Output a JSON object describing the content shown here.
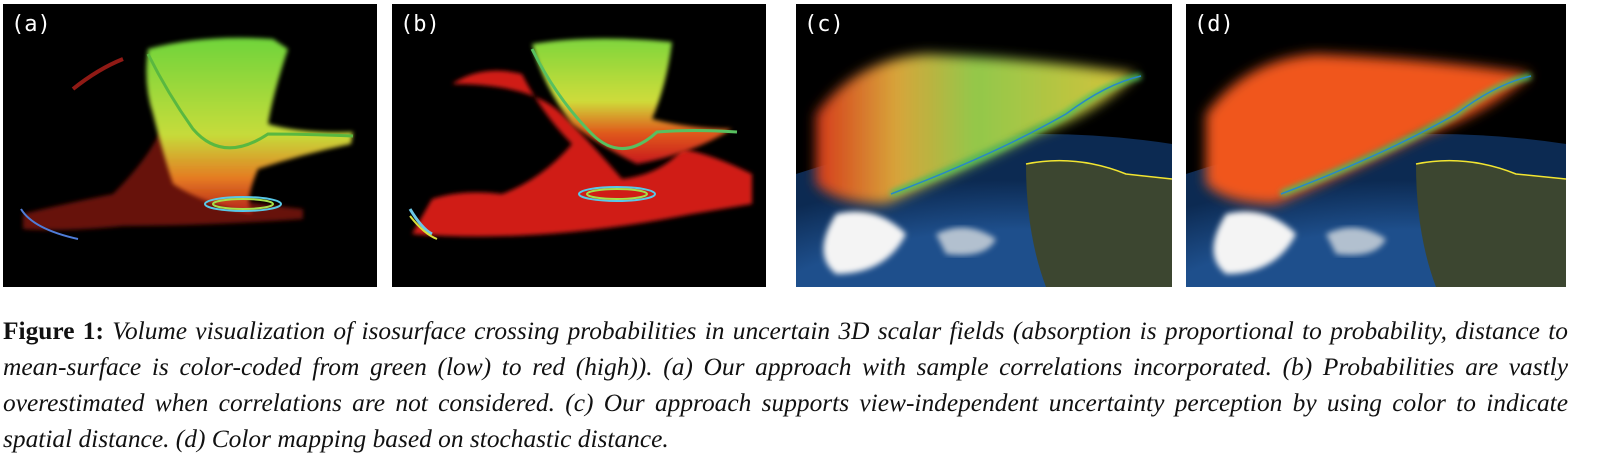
{
  "figure": {
    "panels": [
      {
        "label": "(a)"
      },
      {
        "label": "(b)"
      },
      {
        "label": "(c)"
      },
      {
        "label": "(d)"
      }
    ],
    "caption": {
      "head": "Figure 1:",
      "body": "Volume visualization of isosurface crossing probabilities in uncertain 3D scalar fields (absorption is proportional to probability, distance to mean-surface is color-coded from green (low) to red (high)). (a) Our approach with sample correlations incorporated. (b) Probabilities are vastly overestimated when correlations are not considered. (c) Our approach supports view-independent uncertainty perception by using color to indicate spatial distance. (d) Color mapping based on stochastic distance."
    },
    "colors": {
      "low_distance": "#5fd23a",
      "mid_distance": "#d8e03a",
      "high_distance": "#e2231a",
      "stochastic": "#f0561e",
      "earth_ocean": "#1f4f8a",
      "earth_land": "#3c4630",
      "coastline": "#f2e531"
    }
  }
}
